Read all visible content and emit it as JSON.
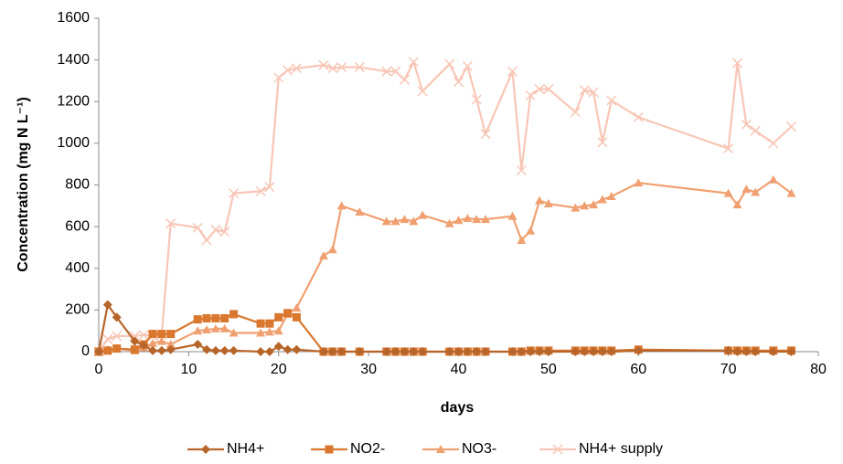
{
  "chart_data": {
    "type": "line",
    "xlabel": "days",
    "ylabel": "Concentration (mg N L⁻¹)",
    "xlim": [
      0,
      80
    ],
    "xticks": [
      0,
      10,
      20,
      30,
      40,
      50,
      60,
      70,
      80
    ],
    "ylim": [
      0,
      1600
    ],
    "yticks": [
      0,
      200,
      400,
      600,
      800,
      1000,
      1200,
      1400,
      1600
    ],
    "grid": false,
    "legend": "bottom",
    "x": [
      0,
      1,
      2,
      4,
      5,
      6,
      7,
      8,
      11,
      12,
      13,
      14,
      15,
      18,
      19,
      20,
      21,
      22,
      25,
      26,
      27,
      29,
      32,
      33,
      34,
      35,
      36,
      39,
      40,
      41,
      42,
      43,
      46,
      47,
      48,
      49,
      50,
      53,
      54,
      55,
      56,
      57,
      60,
      70,
      71,
      72,
      73,
      75,
      77
    ],
    "series": [
      {
        "name": "NH4+",
        "color": "#b8652a",
        "marker": "diamond",
        "values": [
          0,
          225,
          165,
          50,
          30,
          5,
          5,
          10,
          35,
          10,
          5,
          5,
          5,
          0,
          0,
          25,
          10,
          10,
          0,
          0,
          0,
          0,
          0,
          0,
          0,
          0,
          0,
          0,
          0,
          0,
          0,
          0,
          0,
          0,
          0,
          0,
          0,
          0,
          0,
          0,
          0,
          0,
          5,
          5,
          0,
          0,
          0,
          0,
          0
        ]
      },
      {
        "name": "NO2-",
        "color": "#d9772f",
        "marker": "square",
        "values": [
          0,
          5,
          15,
          10,
          35,
          85,
          85,
          85,
          155,
          160,
          160,
          160,
          180,
          135,
          135,
          165,
          185,
          165,
          0,
          0,
          0,
          0,
          0,
          0,
          0,
          0,
          0,
          0,
          0,
          0,
          0,
          0,
          0,
          0,
          5,
          5,
          5,
          5,
          5,
          5,
          5,
          5,
          10,
          5,
          5,
          5,
          5,
          5,
          5
        ]
      },
      {
        "name": "NO3-",
        "color": "#f0a070",
        "marker": "triangle",
        "values": [
          0,
          10,
          15,
          5,
          20,
          40,
          50,
          35,
          100,
          105,
          110,
          110,
          90,
          90,
          95,
          100,
          180,
          210,
          460,
          490,
          700,
          670,
          625,
          625,
          635,
          625,
          655,
          615,
          630,
          640,
          635,
          635,
          650,
          535,
          580,
          725,
          710,
          690,
          700,
          705,
          730,
          745,
          810,
          760,
          705,
          780,
          765,
          825,
          760
        ]
      },
      {
        "name": "NH4+ supply",
        "color": "#f8c6b6",
        "marker": "x",
        "values": [
          0,
          60,
          75,
          75,
          80,
          75,
          80,
          615,
          595,
          535,
          585,
          575,
          760,
          770,
          790,
          1315,
          1350,
          1360,
          1375,
          1360,
          1365,
          1365,
          1345,
          1345,
          1305,
          1390,
          1250,
          1380,
          1295,
          1370,
          1210,
          1045,
          1345,
          870,
          1230,
          1260,
          1260,
          1150,
          1255,
          1245,
          1005,
          1205,
          1125,
          975,
          1385,
          1090,
          1060,
          1000,
          1080
        ]
      }
    ]
  }
}
